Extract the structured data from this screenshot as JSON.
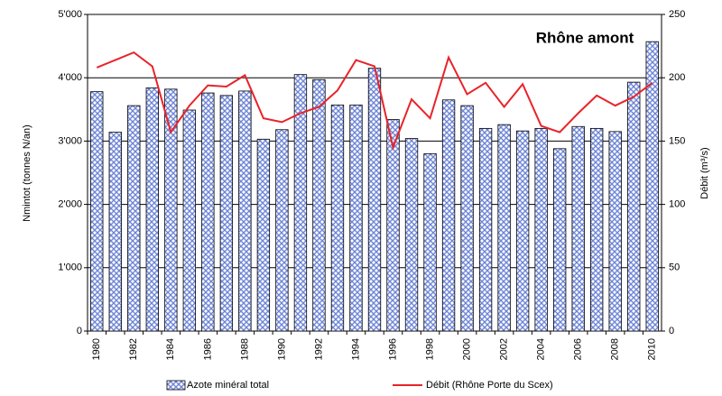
{
  "chart_data": {
    "type": "bar",
    "title": "Rhône amont",
    "ylabel": "Nmintot (tonnes N/an)",
    "y2label": "Débit (m³/s)",
    "categories": [
      "1980",
      null,
      "1982",
      null,
      "1984",
      null,
      "1986",
      null,
      "1988",
      null,
      "1990",
      null,
      "1992",
      null,
      "1994",
      null,
      "1996",
      null,
      "1998",
      null,
      "2000",
      null,
      "2002",
      null,
      "2004",
      null,
      "2006",
      null,
      "2008",
      null,
      "2010"
    ],
    "series": [
      {
        "name": "Azote minéral total",
        "color": "#6f86d6",
        "type": "bar",
        "values": [
          3780,
          3140,
          3560,
          3840,
          3820,
          3490,
          3760,
          3720,
          3790,
          3030,
          3180,
          4050,
          3970,
          3570,
          3570,
          4150,
          3340,
          3040,
          2800,
          3650,
          3560,
          3200,
          3260,
          3160,
          3200,
          2880,
          3230,
          3200,
          3150,
          3930,
          4570
        ]
      },
      {
        "name": "Débit (Rhône Porte du Scex)",
        "color": "#e8232a",
        "type": "line",
        "axis": "y2",
        "values": [
          208,
          214,
          220,
          209,
          157,
          178,
          194,
          193,
          202,
          168,
          165,
          172,
          177,
          190,
          214,
          209,
          145,
          183,
          168,
          216,
          187,
          196,
          177,
          195,
          162,
          157,
          172,
          186,
          178,
          185,
          196
        ]
      }
    ],
    "ylim": [
      0,
      5000
    ],
    "yticks": [
      {
        "value": 0,
        "label": "0"
      },
      {
        "value": 1000,
        "label": "1'000"
      },
      {
        "value": 2000,
        "label": "2'000"
      },
      {
        "value": 3000,
        "label": "3'000"
      },
      {
        "value": 4000,
        "label": "4'000"
      },
      {
        "value": 5000,
        "label": "5'000"
      }
    ],
    "y2lim": [
      0,
      250
    ],
    "y2ticks": [
      0,
      50,
      100,
      150,
      200,
      250
    ],
    "grid": true,
    "legend": "bottom"
  }
}
